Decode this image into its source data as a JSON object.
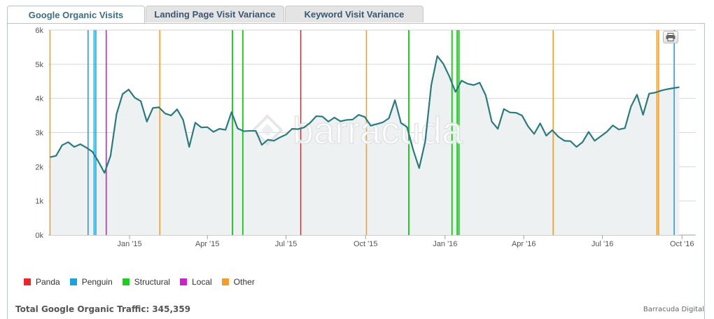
{
  "tabs": [
    {
      "label": "Google Organic Visits",
      "active": true
    },
    {
      "label": "Landing Page Visit Variance",
      "active": false
    },
    {
      "label": "Keyword Visit Variance",
      "active": false
    }
  ],
  "watermark": "barracuda",
  "print_icon": "printer-icon",
  "legend": [
    {
      "label": "Panda",
      "color": "#e8272d"
    },
    {
      "label": "Penguin",
      "color": "#1ca1dd"
    },
    {
      "label": "Structural",
      "color": "#22cc22"
    },
    {
      "label": "Local",
      "color": "#cc22cc"
    },
    {
      "label": "Other",
      "color": "#f39c2d"
    }
  ],
  "footer": {
    "total_label": "Total Google Organic Traffic: 345,359",
    "credit": "Barracuda Digital"
  },
  "colors": {
    "line": "#2a7a7f",
    "area": "#eef1f2",
    "grid": "#d6d6d6"
  },
  "chart_data": {
    "type": "area",
    "x_unit": "week (approx. start dates)",
    "x_ticks": [
      {
        "label": "Jan '15",
        "date": "2015-01-01"
      },
      {
        "label": "Apr '15",
        "date": "2015-04-01"
      },
      {
        "label": "Jul '15",
        "date": "2015-07-01"
      },
      {
        "label": "Oct '15",
        "date": "2015-10-01"
      },
      {
        "label": "Jan '16",
        "date": "2016-01-01"
      },
      {
        "label": "Apr '16",
        "date": "2016-04-01"
      },
      {
        "label": "Jul '16",
        "date": "2016-07-01"
      },
      {
        "label": "Oct '16",
        "date": "2016-10-01"
      }
    ],
    "y_ticks": [
      {
        "label": "0k",
        "value": 0
      },
      {
        "label": "1k",
        "value": 1000
      },
      {
        "label": "2k",
        "value": 2000
      },
      {
        "label": "3k",
        "value": 3000
      },
      {
        "label": "4k",
        "value": 4000
      },
      {
        "label": "5k",
        "value": 5000
      },
      {
        "label": "6k",
        "value": 6000
      }
    ],
    "ylim": [
      0,
      6000
    ],
    "xlim": [
      "2014-09-29",
      "2016-10-17"
    ],
    "series": [
      {
        "values": [
          [
            "2014-10-01",
            2280
          ],
          [
            "2014-10-08",
            2320
          ],
          [
            "2014-10-15",
            2630
          ],
          [
            "2014-10-22",
            2720
          ],
          [
            "2014-10-29",
            2580
          ],
          [
            "2014-11-05",
            2660
          ],
          [
            "2014-11-12",
            2560
          ],
          [
            "2014-11-19",
            2440
          ],
          [
            "2014-11-26",
            2150
          ],
          [
            "2014-12-03",
            1820
          ],
          [
            "2014-12-10",
            2320
          ],
          [
            "2014-12-17",
            3550
          ],
          [
            "2014-12-24",
            4130
          ],
          [
            "2014-12-31",
            4260
          ],
          [
            "2015-01-07",
            4020
          ],
          [
            "2015-01-14",
            3920
          ],
          [
            "2015-01-21",
            3320
          ],
          [
            "2015-01-28",
            3720
          ],
          [
            "2015-02-04",
            3740
          ],
          [
            "2015-02-11",
            3560
          ],
          [
            "2015-02-18",
            3500
          ],
          [
            "2015-02-25",
            3680
          ],
          [
            "2015-03-04",
            3370
          ],
          [
            "2015-03-11",
            2580
          ],
          [
            "2015-03-18",
            3290
          ],
          [
            "2015-03-25",
            3150
          ],
          [
            "2015-04-01",
            3160
          ],
          [
            "2015-04-08",
            3020
          ],
          [
            "2015-04-15",
            3110
          ],
          [
            "2015-04-22",
            3080
          ],
          [
            "2015-04-29",
            3600
          ],
          [
            "2015-05-06",
            3120
          ],
          [
            "2015-05-13",
            3040
          ],
          [
            "2015-05-20",
            3050
          ],
          [
            "2015-05-27",
            3050
          ],
          [
            "2015-06-03",
            2640
          ],
          [
            "2015-06-10",
            2790
          ],
          [
            "2015-06-17",
            2760
          ],
          [
            "2015-06-24",
            2860
          ],
          [
            "2015-07-01",
            2940
          ],
          [
            "2015-07-08",
            3110
          ],
          [
            "2015-07-15",
            3100
          ],
          [
            "2015-07-22",
            3150
          ],
          [
            "2015-07-29",
            3290
          ],
          [
            "2015-08-05",
            3480
          ],
          [
            "2015-08-12",
            3470
          ],
          [
            "2015-08-19",
            3320
          ],
          [
            "2015-08-26",
            3440
          ],
          [
            "2015-09-02",
            3330
          ],
          [
            "2015-09-09",
            3370
          ],
          [
            "2015-09-16",
            3380
          ],
          [
            "2015-09-23",
            3520
          ],
          [
            "2015-09-30",
            3460
          ],
          [
            "2015-10-07",
            3200
          ],
          [
            "2015-10-14",
            3250
          ],
          [
            "2015-10-21",
            3300
          ],
          [
            "2015-10-28",
            3420
          ],
          [
            "2015-11-04",
            3950
          ],
          [
            "2015-11-11",
            3280
          ],
          [
            "2015-11-18",
            3160
          ],
          [
            "2015-11-25",
            2500
          ],
          [
            "2015-12-02",
            1960
          ],
          [
            "2015-12-09",
            2740
          ],
          [
            "2015-12-16",
            4390
          ],
          [
            "2015-12-23",
            5240
          ],
          [
            "2015-12-30",
            5010
          ],
          [
            "2016-01-06",
            4640
          ],
          [
            "2016-01-13",
            4190
          ],
          [
            "2016-01-20",
            4520
          ],
          [
            "2016-01-27",
            4430
          ],
          [
            "2016-02-03",
            4390
          ],
          [
            "2016-02-10",
            4460
          ],
          [
            "2016-02-17",
            4090
          ],
          [
            "2016-02-24",
            3320
          ],
          [
            "2016-03-02",
            3110
          ],
          [
            "2016-03-09",
            3690
          ],
          [
            "2016-03-16",
            3590
          ],
          [
            "2016-03-23",
            3580
          ],
          [
            "2016-03-30",
            3500
          ],
          [
            "2016-04-06",
            3180
          ],
          [
            "2016-04-13",
            2960
          ],
          [
            "2016-04-20",
            3270
          ],
          [
            "2016-04-27",
            2910
          ],
          [
            "2016-05-04",
            3070
          ],
          [
            "2016-05-11",
            2880
          ],
          [
            "2016-05-18",
            2760
          ],
          [
            "2016-05-25",
            2750
          ],
          [
            "2016-06-01",
            2580
          ],
          [
            "2016-06-08",
            2720
          ],
          [
            "2016-06-15",
            3020
          ],
          [
            "2016-06-22",
            2760
          ],
          [
            "2016-06-29",
            2890
          ],
          [
            "2016-07-06",
            3020
          ],
          [
            "2016-07-13",
            3210
          ],
          [
            "2016-07-20",
            3090
          ],
          [
            "2016-07-27",
            3130
          ],
          [
            "2016-08-03",
            3760
          ],
          [
            "2016-08-10",
            4110
          ],
          [
            "2016-08-17",
            3520
          ],
          [
            "2016-08-24",
            4140
          ],
          [
            "2016-08-31",
            4170
          ],
          [
            "2016-09-07",
            4230
          ],
          [
            "2016-09-14",
            4270
          ],
          [
            "2016-09-21",
            4300
          ],
          [
            "2016-09-28",
            4330
          ]
        ]
      }
    ],
    "events": [
      {
        "category": "Other",
        "date": "2014-10-01"
      },
      {
        "category": "Penguin",
        "date": "2014-11-14"
      },
      {
        "category": "Penguin",
        "date": "2014-11-21"
      },
      {
        "category": "Penguin",
        "date": "2014-11-23"
      },
      {
        "category": "Local",
        "date": "2014-12-05"
      },
      {
        "category": "Other",
        "date": "2015-02-05"
      },
      {
        "category": "Structural",
        "date": "2015-04-30"
      },
      {
        "category": "Structural",
        "date": "2015-05-12"
      },
      {
        "category": "Panda",
        "date": "2015-07-18"
      },
      {
        "category": "Other",
        "date": "2015-10-02"
      },
      {
        "category": "Structural",
        "date": "2015-11-20"
      },
      {
        "category": "Structural",
        "date": "2016-01-09"
      },
      {
        "category": "Structural",
        "date": "2016-01-15"
      },
      {
        "category": "Structural",
        "date": "2016-01-17"
      },
      {
        "category": "Other",
        "date": "2016-05-05"
      },
      {
        "category": "Other",
        "date": "2016-09-02"
      },
      {
        "category": "Other",
        "date": "2016-09-04"
      },
      {
        "category": "Penguin",
        "date": "2016-09-22"
      }
    ]
  }
}
